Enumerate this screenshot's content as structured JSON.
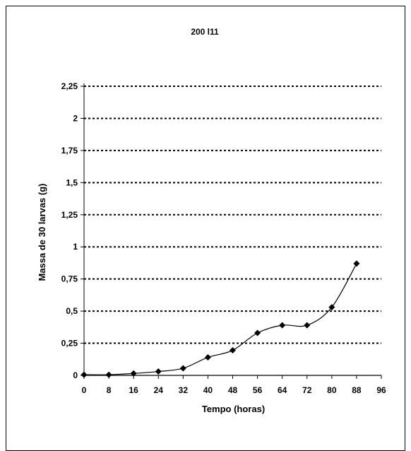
{
  "chart_data": {
    "type": "line",
    "title": "200 l11",
    "xlabel": "Tempo (horas)",
    "ylabel": "Massa de 30 larvas (g)",
    "x_ticks": [
      "0",
      "8",
      "16",
      "24",
      "32",
      "40",
      "48",
      "56",
      "64",
      "72",
      "80",
      "88",
      "96"
    ],
    "y_ticks": [
      "0",
      "0,25",
      "0,5",
      "0,75",
      "1",
      "1,25",
      "1,5",
      "1,75",
      "2",
      "2,25"
    ],
    "xlim": [
      0,
      96
    ],
    "ylim": [
      0,
      2.25
    ],
    "grid": true,
    "legend": "none",
    "colors": {
      "line": "#000000",
      "marker": "#000000",
      "grid": "#000000"
    },
    "series": [
      {
        "x": [
          0,
          8,
          16,
          24,
          32,
          40,
          48,
          56,
          64,
          72,
          80,
          88
        ],
        "y": [
          0.005,
          0.005,
          0.015,
          0.03,
          0.055,
          0.14,
          0.195,
          0.33,
          0.39,
          0.39,
          0.53,
          0.87
        ]
      }
    ]
  }
}
